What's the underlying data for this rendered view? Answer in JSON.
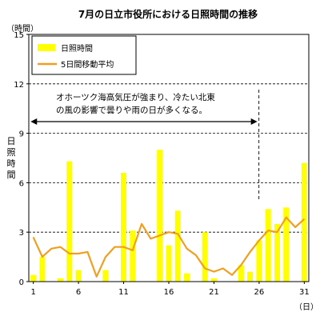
{
  "chart_data": {
    "type": "bar",
    "title": "7月の日立市役所における日照時間の推移",
    "ylabel": "日照時間",
    "y_unit": "（時間）",
    "x_unit": "（日）",
    "ylim": [
      0,
      15
    ],
    "yticks": [
      0,
      3,
      6,
      9,
      12,
      15
    ],
    "xlim": [
      1,
      31
    ],
    "xticks": [
      1,
      6,
      11,
      16,
      21,
      26,
      31
    ],
    "grid": "dashed horizontal at 3-hour intervals",
    "legend_position": "top-left",
    "colors": {
      "bars": "#ffff00",
      "line": "#f0a020",
      "grid": "#000000",
      "annotation_arrow": "#000000"
    },
    "annotation": {
      "line1": "オホーツク海高気圧が強まり、冷たい北東",
      "line2": "の風の影響で曇りや雨の日が多くなる。",
      "arrow_from_day": 1,
      "arrow_to_day": 26
    },
    "series": [
      {
        "name": "日照時間",
        "type": "bar",
        "x": [
          1,
          2,
          3,
          4,
          5,
          6,
          7,
          8,
          9,
          10,
          11,
          12,
          13,
          14,
          15,
          16,
          17,
          18,
          19,
          20,
          21,
          22,
          23,
          24,
          25,
          26,
          27,
          28,
          29,
          30,
          31
        ],
        "values": [
          0.4,
          1.5,
          0,
          0.2,
          7.3,
          0.7,
          0,
          0,
          0.7,
          0,
          6.6,
          3.1,
          0,
          0,
          8.0,
          2.2,
          4.3,
          0.5,
          0,
          3.0,
          0.2,
          0,
          0,
          1.0,
          0.6,
          2.5,
          4.4,
          3.5,
          4.5,
          0,
          7.2
        ]
      },
      {
        "name": "5日間移動平均",
        "type": "line",
        "x": [
          1,
          2,
          3,
          4,
          5,
          6,
          7,
          8,
          9,
          10,
          11,
          12,
          13,
          14,
          15,
          16,
          17,
          18,
          19,
          20,
          21,
          22,
          23,
          24,
          25,
          26,
          27,
          28,
          29,
          30,
          31
        ],
        "values": [
          2.7,
          1.5,
          2.0,
          2.1,
          1.7,
          1.7,
          1.8,
          0.3,
          1.5,
          2.1,
          2.1,
          1.9,
          3.5,
          2.6,
          2.8,
          3.0,
          2.9,
          2.0,
          1.6,
          0.8,
          0.6,
          0.8,
          0.4,
          1.0,
          1.8,
          2.5,
          3.1,
          3.0,
          3.9,
          3.3,
          3.8
        ]
      }
    ]
  }
}
